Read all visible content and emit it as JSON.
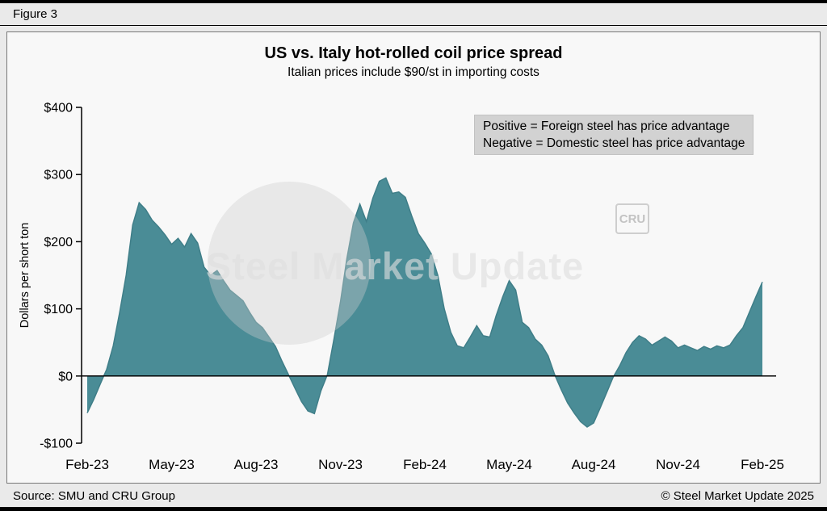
{
  "figure_label": "Figure 3",
  "title": "US vs. Italy hot-rolled coil price spread",
  "subtitle": "Italian prices include $90/st in importing costs",
  "legend": {
    "line1": "Positive = Foreign steel has price advantage",
    "line2": "Negative = Domestic steel has price advantage"
  },
  "watermark": {
    "text": "Steel Market Update",
    "badge": "CRU"
  },
  "footer": {
    "source": "Source: SMU and CRU Group",
    "copyright": "© Steel Market Update 2025"
  },
  "chart_data": {
    "type": "area",
    "title": "US vs. Italy hot-rolled coil price spread",
    "subtitle": "Italian prices include $90/st in importing costs",
    "xlabel": "",
    "ylabel": "Dollars per short ton",
    "ylim": [
      -100,
      400
    ],
    "x_range": [
      "Feb-23",
      "Feb-25"
    ],
    "x_frequency": "weekly",
    "grid": false,
    "legend_position": "top-right",
    "y_ticks": [
      {
        "value": 400,
        "label": "$400"
      },
      {
        "value": 300,
        "label": "$300"
      },
      {
        "value": 200,
        "label": "$200"
      },
      {
        "value": 100,
        "label": "$100"
      },
      {
        "value": 0,
        "label": "$0"
      },
      {
        "value": -100,
        "label": "-$100"
      }
    ],
    "x_ticks": [
      {
        "index": 0,
        "label": "Feb-23"
      },
      {
        "index": 13,
        "label": "May-23"
      },
      {
        "index": 26,
        "label": "Aug-23"
      },
      {
        "index": 39,
        "label": "Nov-23"
      },
      {
        "index": 52,
        "label": "Feb-24"
      },
      {
        "index": 65,
        "label": "May-24"
      },
      {
        "index": 78,
        "label": "Aug-24"
      },
      {
        "index": 91,
        "label": "Nov-24"
      },
      {
        "index": 104,
        "label": "Feb-25"
      }
    ],
    "values": [
      -55,
      -35,
      -12,
      10,
      45,
      95,
      150,
      225,
      258,
      248,
      232,
      222,
      210,
      196,
      205,
      192,
      212,
      198,
      162,
      150,
      157,
      142,
      128,
      120,
      112,
      95,
      80,
      72,
      58,
      44,
      22,
      2,
      -18,
      -38,
      -52,
      -56,
      -22,
      2,
      55,
      110,
      175,
      228,
      256,
      230,
      265,
      290,
      295,
      272,
      274,
      266,
      238,
      212,
      198,
      182,
      150,
      100,
      65,
      45,
      42,
      58,
      75,
      60,
      58,
      90,
      118,
      142,
      128,
      80,
      72,
      55,
      46,
      30,
      2,
      -20,
      -40,
      -55,
      -68,
      -76,
      -70,
      -48,
      -25,
      -2,
      15,
      35,
      50,
      60,
      55,
      46,
      52,
      58,
      52,
      42,
      46,
      42,
      38,
      44,
      40,
      45,
      42,
      46,
      60,
      72,
      95,
      118,
      140
    ],
    "colors": {
      "area": "#4a8c96",
      "area_edge": "#3f7e88",
      "zero_line": "#000000",
      "legend_background": "#d2d2d2"
    }
  }
}
